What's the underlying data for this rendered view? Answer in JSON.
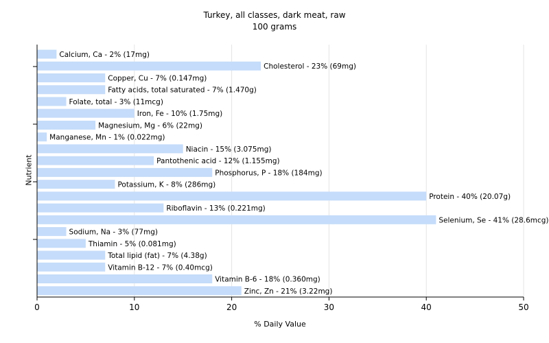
{
  "chart_data": {
    "type": "bar",
    "orientation": "horizontal",
    "title": "Turkey, all classes, dark meat, raw",
    "subtitle": "100 grams",
    "xlabel": "% Daily Value",
    "ylabel": "Nutrient",
    "xlim": [
      0,
      50
    ],
    "xticks": [
      0,
      10,
      20,
      30,
      40,
      50
    ],
    "grid": true,
    "bar_color": "#c5dcfa",
    "categories": [
      "Calcium, Ca",
      "Cholesterol",
      "Copper, Cu",
      "Fatty acids, total saturated",
      "Folate, total",
      "Iron, Fe",
      "Magnesium, Mg",
      "Manganese, Mn",
      "Niacin",
      "Pantothenic acid",
      "Phosphorus, P",
      "Potassium, K",
      "Protein",
      "Riboflavin",
      "Selenium, Se",
      "Sodium, Na",
      "Thiamin",
      "Total lipid (fat)",
      "Vitamin B-12",
      "Vitamin B-6",
      "Zinc, Zn"
    ],
    "values": [
      2,
      23,
      7,
      7,
      3,
      10,
      6,
      1,
      15,
      12,
      18,
      8,
      40,
      13,
      41,
      3,
      5,
      7,
      7,
      18,
      21
    ],
    "labels": [
      "Calcium, Ca - 2% (17mg)",
      "Cholesterol - 23% (69mg)",
      "Copper, Cu - 7% (0.147mg)",
      "Fatty acids, total saturated - 7% (1.470g)",
      "Folate, total - 3% (11mcg)",
      "Iron, Fe - 10% (1.75mg)",
      "Magnesium, Mg - 6% (22mg)",
      "Manganese, Mn - 1% (0.022mg)",
      "Niacin - 15% (3.075mg)",
      "Pantothenic acid - 12% (1.155mg)",
      "Phosphorus, P - 18% (184mg)",
      "Potassium, K - 8% (286mg)",
      "Protein - 40% (20.07g)",
      "Riboflavin - 13% (0.221mg)",
      "Selenium, Se - 41% (28.6mcg)",
      "Sodium, Na - 3% (77mg)",
      "Thiamin - 5% (0.081mg)",
      "Total lipid (fat) - 7% (4.38g)",
      "Vitamin B-12 - 7% (0.40mcg)",
      "Vitamin B-6 - 18% (0.360mg)",
      "Zinc, Zn - 21% (3.22mg)"
    ]
  }
}
